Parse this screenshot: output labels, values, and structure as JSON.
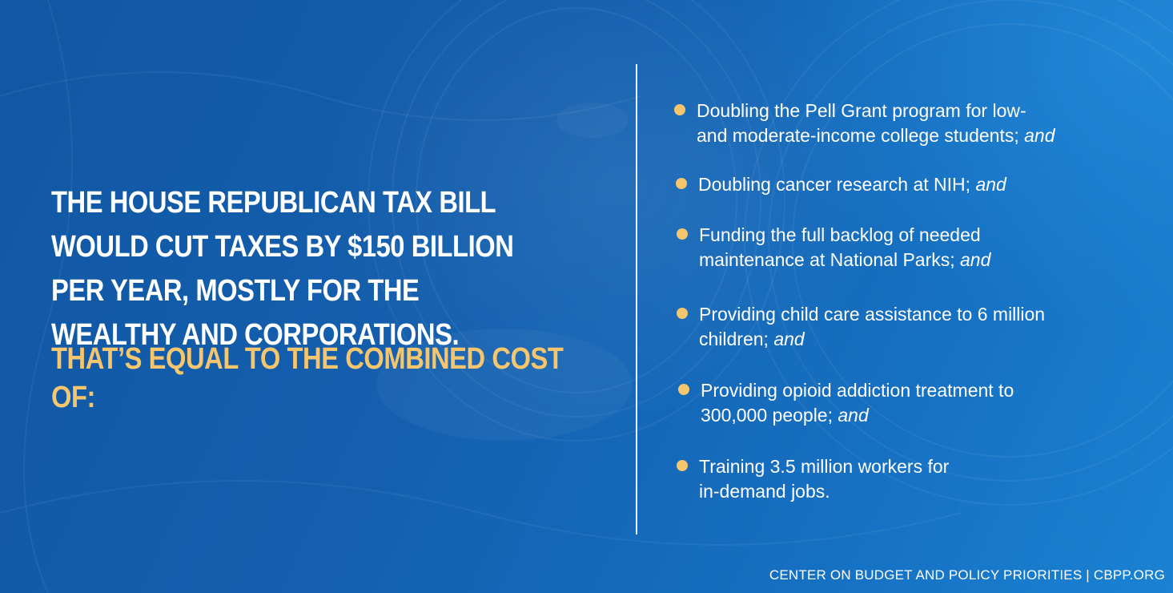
{
  "headline": "The House Republican tax bill would cut taxes by $150 billion per year, mostly for the wealthy and corporations.",
  "subhead": "That’s equal to the combined cost of:",
  "items": [
    {
      "line1": "Doubling the Pell Grant program for low-",
      "line2": "and moderate-income college students; ",
      "suffix": "and"
    },
    {
      "line1": "Doubling cancer research at NIH; ",
      "suffix": "and"
    },
    {
      "line1": "Funding the full backlog of needed",
      "line2": "maintenance at National Parks; ",
      "suffix": "and"
    },
    {
      "line1": "Providing child care assistance to 6 million",
      "line2": "children; ",
      "suffix": "and"
    },
    {
      "line1": "Providing opioid addiction treatment to",
      "line2": "300,000 people; ",
      "suffix": "and"
    },
    {
      "line1": "Training 3.5 million workers for",
      "line2": "in-demand jobs."
    }
  ],
  "footer": "CENTER ON BUDGET AND POLICY PRIORITIES | CBPP.ORG",
  "colors": {
    "background": "#1560ad",
    "accent_yellow": "#f5c66d",
    "text": "#ffffff",
    "divider": "#e8eef6"
  }
}
